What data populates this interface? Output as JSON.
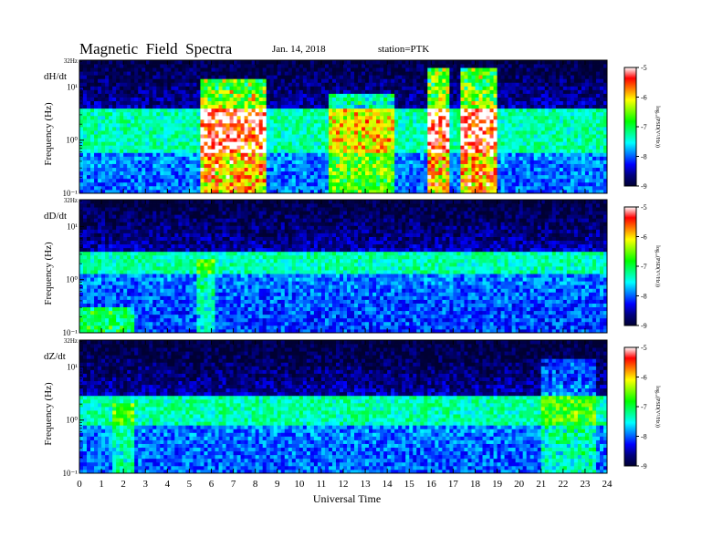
{
  "header": {
    "title": "Magnetic  Field  Spectra",
    "date": "Jan. 14, 2018",
    "station": "station=PTK"
  },
  "chart_data": [
    {
      "type": "heatmap",
      "panel_label": "dH/dt",
      "ylabel": "Frequency  (Hz)",
      "yscale": "log",
      "ylim": [
        0.1,
        32
      ],
      "yticks": [
        {
          "label": "10⁻¹",
          "value": 0.1
        },
        {
          "label": "10⁰",
          "value": 1
        },
        {
          "label": "10¹",
          "value": 10
        },
        {
          "label": "32Hz",
          "value": 32
        }
      ],
      "xlim": [
        0,
        24
      ],
      "colorbar": {
        "label": "log₁₀(PSD(V²/Hz))",
        "min": -9,
        "max": -5,
        "ticks": [
          "-5",
          "-6",
          "-7",
          "-8",
          "-9"
        ]
      },
      "background_band_hz": [
        0.6,
        4
      ],
      "bursts": [
        {
          "start_h": 5.5,
          "end_h": 8.5,
          "max_freq_hz": 15,
          "intensity": 1.0
        },
        {
          "start_h": 11.3,
          "end_h": 14.4,
          "max_freq_hz": 8,
          "intensity": 0.6
        },
        {
          "start_h": 15.9,
          "end_h": 16.8,
          "max_freq_hz": 25,
          "intensity": 1.0
        },
        {
          "start_h": 17.3,
          "end_h": 19.0,
          "max_freq_hz": 22,
          "intensity": 1.0
        }
      ]
    },
    {
      "type": "heatmap",
      "panel_label": "dD/dt",
      "ylabel": "Frequency  (Hz)",
      "yscale": "log",
      "ylim": [
        0.1,
        32
      ],
      "yticks": [
        {
          "label": "10⁻¹",
          "value": 0.1
        },
        {
          "label": "10⁰",
          "value": 1
        },
        {
          "label": "10¹",
          "value": 10
        },
        {
          "label": "32Hz",
          "value": 32
        }
      ],
      "xlim": [
        0,
        24
      ],
      "colorbar": {
        "label": "log₁₀(PSD(V²/Hz))",
        "min": -9,
        "max": -5,
        "ticks": [
          "-5",
          "-6",
          "-7",
          "-8",
          "-9"
        ]
      },
      "background_band_hz": [
        1.2,
        3.5
      ],
      "bursts": [
        {
          "start_h": 0.0,
          "end_h": 2.5,
          "max_freq_hz": 0.3,
          "intensity": 0.5
        },
        {
          "start_h": 5.4,
          "end_h": 6.2,
          "max_freq_hz": 2.5,
          "intensity": 0.3
        }
      ]
    },
    {
      "type": "heatmap",
      "panel_label": "dZ/dt",
      "ylabel": "Frequency  (Hz)",
      "yscale": "log",
      "ylim": [
        0.1,
        32
      ],
      "yticks": [
        {
          "label": "10⁻¹",
          "value": 0.1
        },
        {
          "label": "10⁰",
          "value": 1
        },
        {
          "label": "10¹",
          "value": 10
        },
        {
          "label": "32Hz",
          "value": 32
        }
      ],
      "xlim": [
        0,
        24
      ],
      "colorbar": {
        "label": "log₁₀(PSD(V²/Hz))",
        "min": -9,
        "max": -5,
        "ticks": [
          "-5",
          "-6",
          "-7",
          "-8",
          "-9"
        ]
      },
      "background_band_hz": [
        0.8,
        3
      ],
      "bursts": [
        {
          "start_h": 1.5,
          "end_h": 2.5,
          "max_freq_hz": 2.0,
          "intensity": 0.3
        },
        {
          "start_h": 21.0,
          "end_h": 23.5,
          "max_freq_hz": 14,
          "intensity": 0.3
        }
      ]
    }
  ],
  "xaxis": {
    "label": "Universal Time",
    "ticks": [
      "0",
      "1",
      "2",
      "3",
      "4",
      "5",
      "6",
      "7",
      "8",
      "9",
      "10",
      "11",
      "12",
      "13",
      "14",
      "15",
      "16",
      "17",
      "18",
      "19",
      "20",
      "21",
      "22",
      "23",
      "24"
    ]
  },
  "colormap": [
    "#000033",
    "#00007f",
    "#0000ff",
    "#0080ff",
    "#00ffff",
    "#00ff80",
    "#00ff00",
    "#80ff00",
    "#ffff00",
    "#ff8000",
    "#ff0000",
    "#ffffff"
  ]
}
